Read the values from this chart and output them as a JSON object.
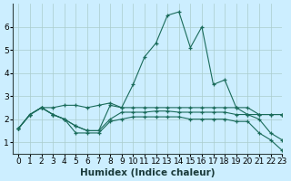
{
  "xlabel": "Humidex (Indice chaleur)",
  "bg_color": "#cceeff",
  "line_color": "#1a6b5a",
  "grid_color": "#aacccc",
  "x_values": [
    0,
    1,
    2,
    3,
    4,
    5,
    6,
    7,
    8,
    9,
    10,
    11,
    12,
    13,
    14,
    15,
    16,
    17,
    18,
    19,
    20,
    21,
    22,
    23
  ],
  "series": [
    [
      1.6,
      2.2,
      2.5,
      2.2,
      2.0,
      1.7,
      1.5,
      1.5,
      2.0,
      2.3,
      2.3,
      2.3,
      2.35,
      2.35,
      2.3,
      2.3,
      2.3,
      2.3,
      2.3,
      2.2,
      2.2,
      2.2,
      2.2,
      2.2
    ],
    [
      1.6,
      2.2,
      2.5,
      2.2,
      2.0,
      1.4,
      1.4,
      1.4,
      1.9,
      2.0,
      2.1,
      2.1,
      2.1,
      2.1,
      2.1,
      2.0,
      2.0,
      2.0,
      2.0,
      1.9,
      1.9,
      1.4,
      1.1,
      0.65
    ],
    [
      1.6,
      2.2,
      2.5,
      2.5,
      2.6,
      2.6,
      2.5,
      2.6,
      2.7,
      2.5,
      2.5,
      2.5,
      2.5,
      2.5,
      2.5,
      2.5,
      2.5,
      2.5,
      2.5,
      2.5,
      2.5,
      2.2,
      2.2,
      2.2
    ],
    [
      1.6,
      2.2,
      2.5,
      2.2,
      2.0,
      1.7,
      1.5,
      1.5,
      2.6,
      2.5,
      3.5,
      4.7,
      5.3,
      6.5,
      6.65,
      5.1,
      6.0,
      3.5,
      3.7,
      2.5,
      2.2,
      2.0,
      1.4,
      1.1
    ]
  ],
  "ylim": [
    0.5,
    7.0
  ],
  "xlim": [
    -0.5,
    23
  ],
  "yticks": [
    1,
    2,
    3,
    4,
    5,
    6
  ],
  "xticks": [
    0,
    1,
    2,
    3,
    4,
    5,
    6,
    7,
    8,
    9,
    10,
    11,
    12,
    13,
    14,
    15,
    16,
    17,
    18,
    19,
    20,
    21,
    22,
    23
  ],
  "tick_fontsize": 6.5,
  "xlabel_fontsize": 7.5
}
